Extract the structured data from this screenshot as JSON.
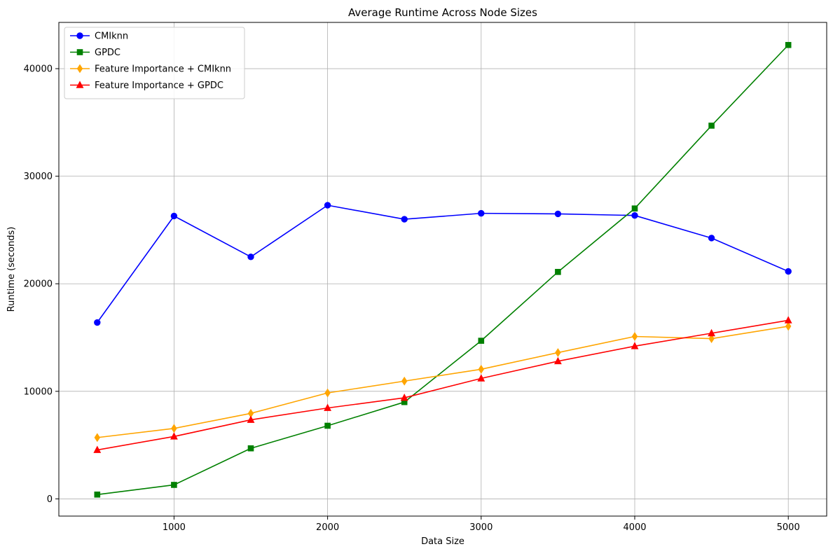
{
  "chart_data": {
    "type": "line",
    "title": "Average Runtime Across Node Sizes",
    "xlabel": "Data Size",
    "ylabel": "Runtime (seconds)",
    "xlim": [
      250,
      5250
    ],
    "ylim": [
      -1600,
      44300
    ],
    "x_ticks": [
      1000,
      2000,
      3000,
      4000,
      5000
    ],
    "y_ticks": [
      0,
      10000,
      20000,
      30000,
      40000
    ],
    "grid": true,
    "legend_position": "upper-left",
    "x": [
      500,
      1000,
      1500,
      2000,
      2500,
      3000,
      3500,
      4000,
      4500,
      5000
    ],
    "series": [
      {
        "name": "CMIknn",
        "color": "#0000ff",
        "marker": "circle",
        "values": [
          16400,
          26300,
          22500,
          27300,
          26000,
          26550,
          26500,
          26350,
          24250,
          21150
        ]
      },
      {
        "name": "GPDC",
        "color": "#008000",
        "marker": "square",
        "values": [
          400,
          1300,
          4700,
          6800,
          9000,
          14700,
          21100,
          27000,
          34700,
          42200
        ]
      },
      {
        "name": "Feature Importance + CMIknn",
        "color": "#ffa500",
        "marker": "diamond",
        "values": [
          5700,
          6550,
          7950,
          9850,
          10950,
          12050,
          13600,
          15100,
          14900,
          16050
        ]
      },
      {
        "name": "Feature Importance + GPDC",
        "color": "#ff0000",
        "marker": "triangle",
        "values": [
          4550,
          5800,
          7350,
          8450,
          9400,
          11200,
          12800,
          14200,
          15400,
          16600
        ]
      }
    ]
  }
}
